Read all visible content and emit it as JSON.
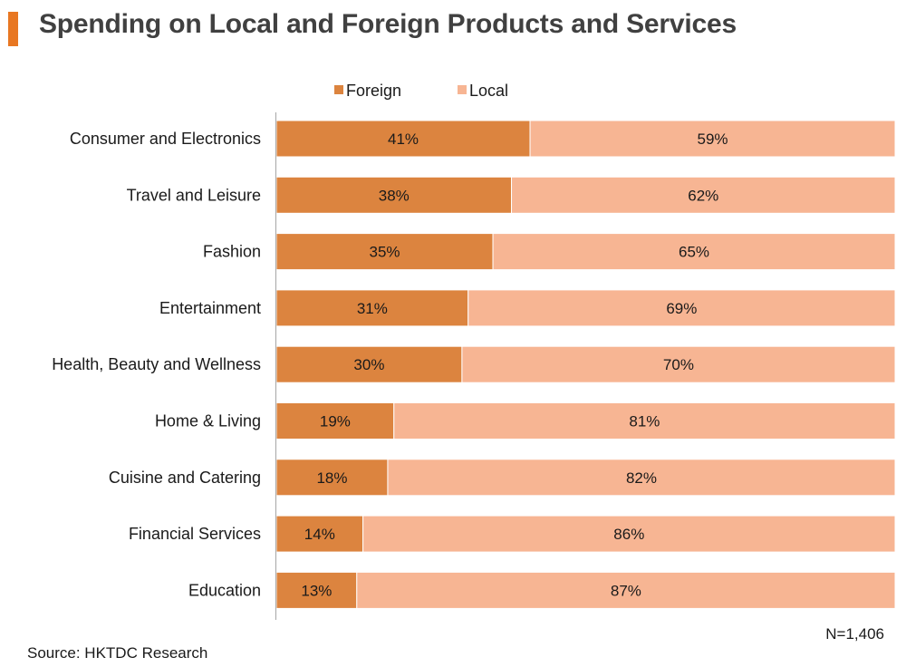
{
  "header": {
    "title": "Spending on Local and Foreign Products and Services"
  },
  "footer": {
    "note": "N=1,406",
    "source": "Source: HKTDC Research"
  },
  "colors": {
    "accent": "#e87722",
    "foreign": "#dc843f",
    "local": "#f7b593",
    "axis": "#a6a6a6"
  },
  "chart_data": {
    "type": "bar",
    "orientation": "horizontal",
    "stacked": true,
    "percent_stacked": true,
    "title": "Spending on Local and Foreign Products and Services",
    "legend_position": "top",
    "grid": false,
    "xlim": [
      0,
      100
    ],
    "categories": [
      "Consumer and Electronics",
      "Travel and Leisure",
      "Fashion",
      "Entertainment",
      "Health, Beauty and Wellness",
      "Home & Living",
      "Cuisine and Catering",
      "Financial Services",
      "Education"
    ],
    "series": [
      {
        "name": "Foreign",
        "color": "#dc843f",
        "values": [
          41,
          38,
          35,
          31,
          30,
          19,
          18,
          14,
          13
        ],
        "labels": [
          "41%",
          "38%",
          "35%",
          "31%",
          "30%",
          "19%",
          "18%",
          "14%",
          "13%"
        ]
      },
      {
        "name": "Local",
        "color": "#f7b593",
        "values": [
          59,
          62,
          65,
          69,
          70,
          81,
          82,
          86,
          87
        ],
        "labels": [
          "59%",
          "62%",
          "65%",
          "69%",
          "70%",
          "81%",
          "82%",
          "86%",
          "87%"
        ]
      }
    ]
  }
}
